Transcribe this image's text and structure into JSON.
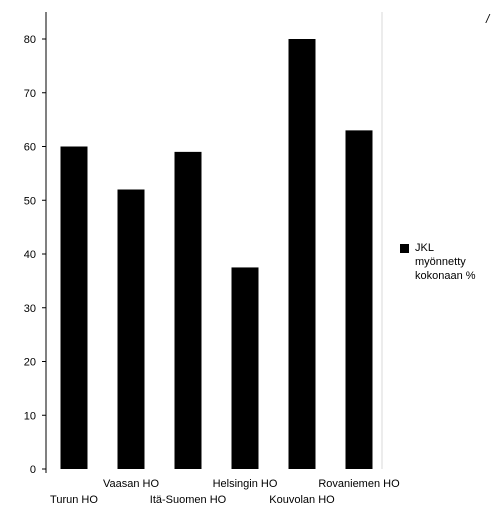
{
  "chart_data": {
    "type": "bar",
    "categories": [
      "Turun HO",
      "Vaasan HO",
      "Itä-Suomen HO",
      "Helsingin HO",
      "Kouvolan HO",
      "Rovaniemen HO"
    ],
    "series": [
      {
        "name": "JKL myönnetty kokonaan %",
        "values": [
          60,
          52,
          59,
          37.5,
          80,
          63
        ]
      }
    ],
    "ylim": [
      0,
      80
    ],
    "yticks": [
      0,
      10,
      20,
      30,
      40,
      50,
      60,
      70,
      80
    ],
    "grid": false,
    "legend_position": "right",
    "bar_color": "#000000"
  },
  "legend": {
    "label": "JKL myönnetty kokonaan %"
  },
  "corner_mark": "/"
}
